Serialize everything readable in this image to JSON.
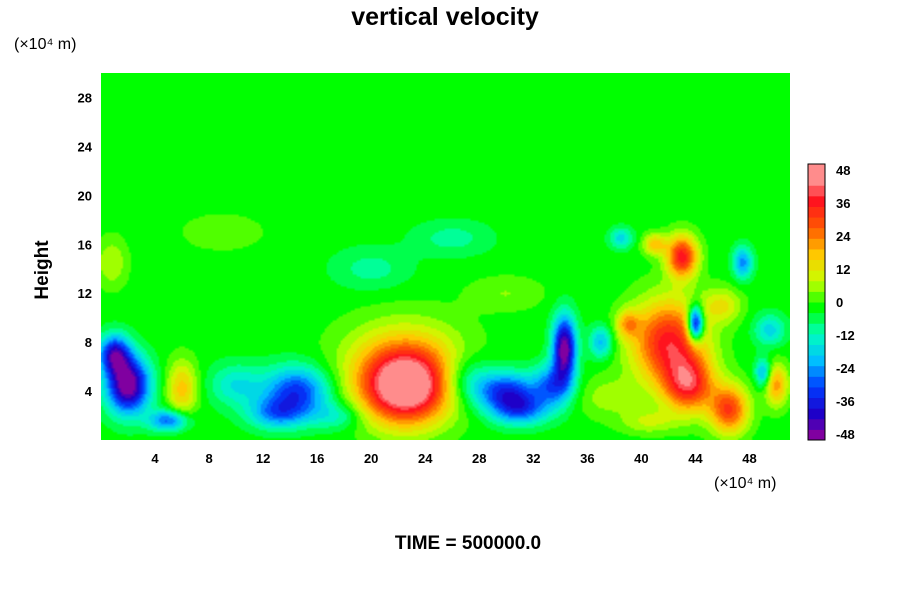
{
  "chart_data": {
    "type": "heatmap",
    "title": "vertical velocity",
    "ylabel": "Height",
    "xlabel": "",
    "x_unit": "(×10⁴ m)",
    "y_unit": "(×10⁴ m)",
    "xlim": [
      0,
      51
    ],
    "ylim": [
      0,
      30
    ],
    "x_ticks": [
      4,
      8,
      12,
      16,
      20,
      24,
      28,
      32,
      36,
      40,
      44,
      48
    ],
    "y_ticks": [
      4,
      8,
      12,
      16,
      20,
      24,
      28
    ],
    "colorbar": {
      "range": [
        -48,
        48
      ],
      "ticks": [
        48,
        36,
        24,
        12,
        0,
        -12,
        -24,
        -36,
        -48
      ]
    },
    "background_value": 0,
    "features": [
      {
        "x": 2.0,
        "y": 4.5,
        "value": -52,
        "sx": 1.1,
        "sy": 1.6
      },
      {
        "x": 1.0,
        "y": 7.0,
        "value": -38,
        "sx": 0.8,
        "sy": 1.1
      },
      {
        "x": 5.0,
        "y": 1.6,
        "value": -28,
        "sx": 1.0,
        "sy": 0.6
      },
      {
        "x": 6.0,
        "y": 4.2,
        "value": 20,
        "sx": 0.8,
        "sy": 1.6
      },
      {
        "x": 10.0,
        "y": 4.5,
        "value": -14,
        "sx": 1.4,
        "sy": 1.2
      },
      {
        "x": 14.5,
        "y": 4.0,
        "value": -32,
        "sx": 1.7,
        "sy": 1.4
      },
      {
        "x": 13.0,
        "y": 2.2,
        "value": -22,
        "sx": 1.5,
        "sy": 0.9
      },
      {
        "x": 22.5,
        "y": 4.2,
        "value": 52,
        "sx": 2.3,
        "sy": 2.1
      },
      {
        "x": 22.5,
        "y": 6.5,
        "value": 18,
        "sx": 3.2,
        "sy": 2.4
      },
      {
        "x": 30.0,
        "y": 4.0,
        "value": -32,
        "sx": 1.6,
        "sy": 1.1
      },
      {
        "x": 31.0,
        "y": 2.5,
        "value": -26,
        "sx": 1.5,
        "sy": 0.9
      },
      {
        "x": 34.3,
        "y": 7.5,
        "value": -50,
        "sx": 0.6,
        "sy": 1.8
      },
      {
        "x": 33.5,
        "y": 4.5,
        "value": -26,
        "sx": 1.0,
        "sy": 1.2
      },
      {
        "x": 37.5,
        "y": 3.5,
        "value": 8,
        "sx": 1.6,
        "sy": 1.2
      },
      {
        "x": 42.0,
        "y": 8.0,
        "value": 40,
        "sx": 1.9,
        "sy": 2.4
      },
      {
        "x": 43.5,
        "y": 4.5,
        "value": 36,
        "sx": 1.3,
        "sy": 1.6
      },
      {
        "x": 46.5,
        "y": 2.5,
        "value": 34,
        "sx": 1.0,
        "sy": 1.4
      },
      {
        "x": 44.0,
        "y": 9.5,
        "value": -50,
        "sx": 0.4,
        "sy": 1.0
      },
      {
        "x": 43.0,
        "y": 15.0,
        "value": 40,
        "sx": 0.8,
        "sy": 1.2
      },
      {
        "x": 47.5,
        "y": 14.5,
        "value": -24,
        "sx": 0.5,
        "sy": 0.9
      },
      {
        "x": 41.0,
        "y": 16.0,
        "value": 20,
        "sx": 0.6,
        "sy": 0.6
      },
      {
        "x": 38.5,
        "y": 16.5,
        "value": -16,
        "sx": 0.6,
        "sy": 0.6
      },
      {
        "x": 50.0,
        "y": 4.5,
        "value": 24,
        "sx": 0.6,
        "sy": 1.2
      },
      {
        "x": 49.0,
        "y": 5.5,
        "value": -22,
        "sx": 0.4,
        "sy": 0.8
      },
      {
        "x": 37.0,
        "y": 8.0,
        "value": -20,
        "sx": 0.6,
        "sy": 0.9
      },
      {
        "x": 39.0,
        "y": 9.5,
        "value": 18,
        "sx": 0.6,
        "sy": 0.8
      },
      {
        "x": 0.8,
        "y": 14.5,
        "value": 10,
        "sx": 0.8,
        "sy": 1.4
      },
      {
        "x": 20.0,
        "y": 14.0,
        "value": -8,
        "sx": 2.0,
        "sy": 1.2
      },
      {
        "x": 26.0,
        "y": 16.5,
        "value": -8,
        "sx": 2.0,
        "sy": 1.0
      },
      {
        "x": 9.0,
        "y": 17.0,
        "value": 6,
        "sx": 2.0,
        "sy": 1.0
      },
      {
        "x": 30.0,
        "y": 12.0,
        "value": 6,
        "sx": 2.0,
        "sy": 1.0
      },
      {
        "x": 46.0,
        "y": 11.0,
        "value": 14,
        "sx": 1.0,
        "sy": 1.0
      },
      {
        "x": 49.5,
        "y": 9.0,
        "value": -16,
        "sx": 0.8,
        "sy": 0.9
      },
      {
        "x": 27.0,
        "y": 5.0,
        "value": -14,
        "sx": 1.4,
        "sy": 1.4
      },
      {
        "x": 17.5,
        "y": 2.0,
        "value": -12,
        "sx": 1.4,
        "sy": 0.8
      },
      {
        "x": 40.5,
        "y": 1.5,
        "value": 10,
        "sx": 1.4,
        "sy": 0.7
      }
    ],
    "time_label": "TIME = 500000.0"
  }
}
